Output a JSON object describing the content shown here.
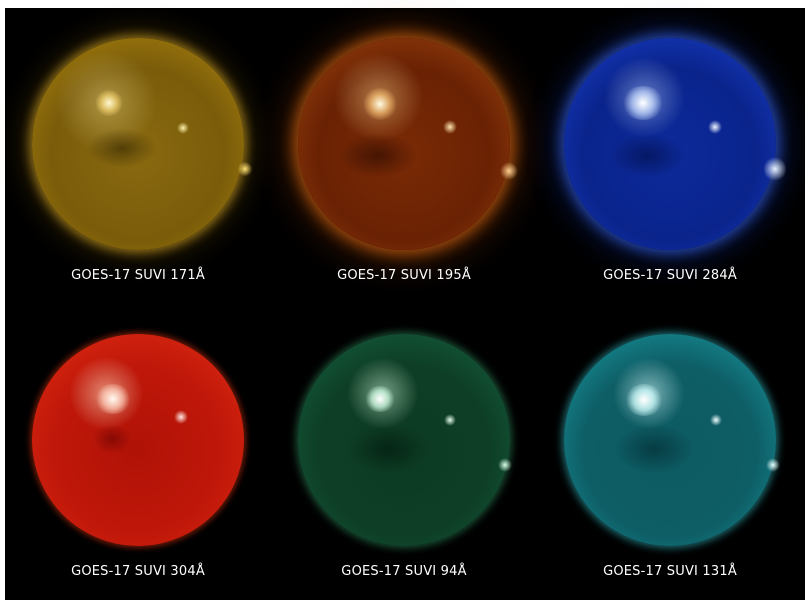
{
  "panels": [
    {
      "caption": "GOES-17 SUVI 171Å",
      "color": "#c89a18"
    },
    {
      "caption": "GOES-17 SUVI 195Å",
      "color": "#b34a10"
    },
    {
      "caption": "GOES-17 SUVI 284Å",
      "color": "#1a3ec0"
    },
    {
      "caption": "GOES-17 SUVI 304Å",
      "color": "#d01e0c"
    },
    {
      "caption": "GOES-17 SUVI 94Å",
      "color": "#1a7a4c"
    },
    {
      "caption": "GOES-17 SUVI 131Å",
      "color": "#1fb0b8"
    }
  ]
}
